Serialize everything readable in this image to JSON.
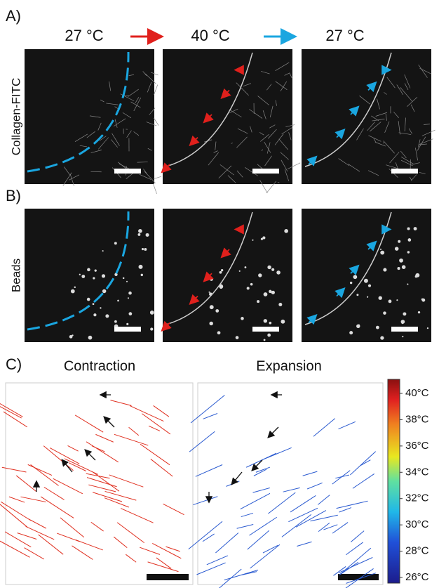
{
  "figure": {
    "panel_a": {
      "label": "A)",
      "row_label": "Collagen-FITC"
    },
    "temperatures": [
      "27 °C",
      "40 °C",
      "27 °C"
    ],
    "panel_b": {
      "label": "B)",
      "row_label": "Beads"
    },
    "panel_c": {
      "label": "C)",
      "titles": [
        "Contraction",
        "Expansion"
      ],
      "colorbar_ticks": [
        "40°C",
        "38°C",
        "36°C",
        "34°C",
        "32°C",
        "30°C",
        "28°C",
        "26°C"
      ]
    }
  }
}
